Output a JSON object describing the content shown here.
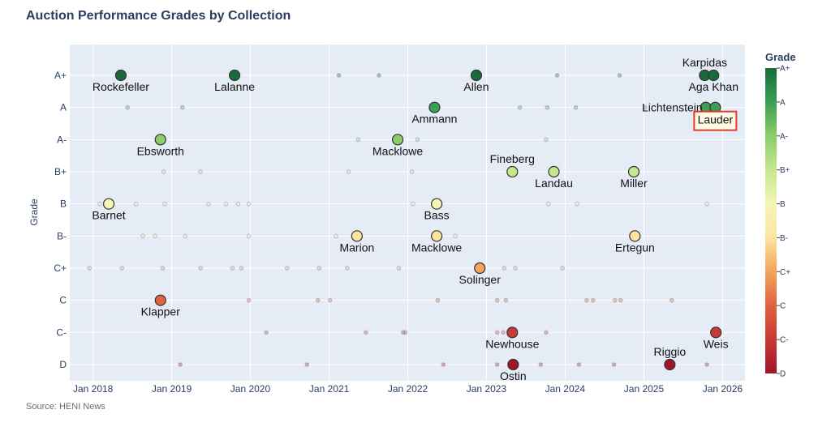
{
  "chart_data": {
    "type": "scatter",
    "title": "Auction Performance Grades by Collection",
    "source": "Source: HENI News",
    "ylabel": "Grade",
    "xlabel": "",
    "grid": true,
    "legend": "colorbar-right",
    "y_categories": [
      "D",
      "C-",
      "C",
      "C+",
      "B-",
      "B",
      "B+",
      "A-",
      "A",
      "A+"
    ],
    "x_ticks": [
      "2018-01-01",
      "2019-01-01",
      "2020-01-01",
      "2021-01-01",
      "2022-01-01",
      "2023-01-01",
      "2024-01-01",
      "2025-01-01",
      "2026-01-01"
    ],
    "x_tick_labels": [
      "Jan 2018",
      "Jan 2019",
      "Jan 2020",
      "Jan 2021",
      "Jan 2022",
      "Jan 2023",
      "Jan 2024",
      "Jan 2025",
      "Jan 2026"
    ],
    "xlim": [
      "2017-09-15",
      "2026-04-15"
    ],
    "colorbar": {
      "title": "Grade",
      "ticks": [
        "A+",
        "A",
        "A-",
        "B+",
        "B",
        "B-",
        "C+",
        "C",
        "C-",
        "D"
      ],
      "colors": [
        "#1a6b3a",
        "#39a055",
        "#8ccc6a",
        "#c5e78e",
        "#f5f5b8",
        "#fde4a0",
        "#f3a45a",
        "#e0613f",
        "#c83a35",
        "#a11527"
      ]
    },
    "highlight": "Lauder",
    "series": [
      {
        "type": "labeled",
        "points": [
          {
            "label": "Rockefeller",
            "date": "2018-05-10",
            "grade": "A+",
            "pos": "below"
          },
          {
            "label": "Lalanne",
            "date": "2019-10-20",
            "grade": "A+",
            "pos": "below"
          },
          {
            "label": "Allen",
            "date": "2022-11-15",
            "grade": "A+",
            "pos": "below"
          },
          {
            "label": "Karpidas",
            "date": "2025-10-10",
            "grade": "A+",
            "pos": "above"
          },
          {
            "label": "Aga Khan",
            "date": "2025-11-20",
            "grade": "A+",
            "pos": "below"
          },
          {
            "label": "Ammann",
            "date": "2022-05-05",
            "grade": "A",
            "pos": "below"
          },
          {
            "label": "Lichtenstein",
            "date": "2025-10-15",
            "grade": "A",
            "pos": "left"
          },
          {
            "label": "Lauder",
            "date": "2025-11-28",
            "grade": "A",
            "pos": "below-box"
          },
          {
            "label": "Ebsworth",
            "date": "2018-11-10",
            "grade": "A-",
            "pos": "below"
          },
          {
            "label": "Macklowe",
            "date": "2021-11-15",
            "grade": "A-",
            "pos": "below"
          },
          {
            "label": "Fineberg",
            "date": "2023-05-01",
            "grade": "B+",
            "pos": "above"
          },
          {
            "label": "Landau",
            "date": "2023-11-10",
            "grade": "B+",
            "pos": "below"
          },
          {
            "label": "Miller",
            "date": "2024-11-15",
            "grade": "B+",
            "pos": "below"
          },
          {
            "label": "Barnet",
            "date": "2018-03-15",
            "grade": "B",
            "pos": "below"
          },
          {
            "label": "Bass",
            "date": "2022-05-15",
            "grade": "B",
            "pos": "below"
          },
          {
            "label": "Marion",
            "date": "2021-05-10",
            "grade": "B-",
            "pos": "below"
          },
          {
            "label": "Macklowe",
            "date": "2022-05-15",
            "grade": "B-",
            "pos": "below"
          },
          {
            "label": "Ertegun",
            "date": "2024-11-20",
            "grade": "B-",
            "pos": "below"
          },
          {
            "label": "Solinger",
            "date": "2022-12-01",
            "grade": "C+",
            "pos": "below"
          },
          {
            "label": "Klapper",
            "date": "2018-11-10",
            "grade": "C",
            "pos": "below"
          },
          {
            "label": "Newhouse",
            "date": "2023-05-01",
            "grade": "C-",
            "pos": "below"
          },
          {
            "label": "Weis",
            "date": "2025-12-01",
            "grade": "C-",
            "pos": "below"
          },
          {
            "label": "Ostin",
            "date": "2023-05-05",
            "grade": "D",
            "pos": "below"
          },
          {
            "label": "Riggio",
            "date": "2025-05-01",
            "grade": "D",
            "pos": "above"
          }
        ]
      },
      {
        "type": "small",
        "points": [
          {
            "date": "2021-02-15",
            "grade": "A+"
          },
          {
            "date": "2021-08-20",
            "grade": "A+"
          },
          {
            "date": "2023-11-25",
            "grade": "A+"
          },
          {
            "date": "2024-09-10",
            "grade": "A+"
          },
          {
            "date": "2018-06-10",
            "grade": "A"
          },
          {
            "date": "2019-02-20",
            "grade": "A"
          },
          {
            "date": "2023-06-05",
            "grade": "A"
          },
          {
            "date": "2023-10-10",
            "grade": "A"
          },
          {
            "date": "2024-02-20",
            "grade": "A"
          },
          {
            "date": "2025-01-05",
            "grade": "A"
          },
          {
            "date": "2021-05-15",
            "grade": "A-"
          },
          {
            "date": "2022-02-15",
            "grade": "A-"
          },
          {
            "date": "2023-10-05",
            "grade": "A-"
          },
          {
            "date": "2018-11-25",
            "grade": "B+"
          },
          {
            "date": "2019-05-15",
            "grade": "B+"
          },
          {
            "date": "2021-04-01",
            "grade": "B+"
          },
          {
            "date": "2022-01-20",
            "grade": "B+"
          },
          {
            "date": "2023-05-10",
            "grade": "B+"
          },
          {
            "date": "2018-02-01",
            "grade": "B"
          },
          {
            "date": "2018-07-20",
            "grade": "B"
          },
          {
            "date": "2018-11-30",
            "grade": "B"
          },
          {
            "date": "2019-06-20",
            "grade": "B"
          },
          {
            "date": "2019-09-10",
            "grade": "B"
          },
          {
            "date": "2019-11-05",
            "grade": "B"
          },
          {
            "date": "2019-12-25",
            "grade": "B"
          },
          {
            "date": "2022-01-25",
            "grade": "B"
          },
          {
            "date": "2023-10-15",
            "grade": "B"
          },
          {
            "date": "2024-02-25",
            "grade": "B"
          },
          {
            "date": "2025-10-20",
            "grade": "B"
          },
          {
            "date": "2018-08-20",
            "grade": "B-"
          },
          {
            "date": "2018-10-15",
            "grade": "B-"
          },
          {
            "date": "2019-03-05",
            "grade": "B-"
          },
          {
            "date": "2019-12-25",
            "grade": "B-"
          },
          {
            "date": "2021-02-01",
            "grade": "B-"
          },
          {
            "date": "2022-08-10",
            "grade": "B-"
          },
          {
            "date": "2024-11-10",
            "grade": "B-"
          },
          {
            "date": "2017-12-15",
            "grade": "C+"
          },
          {
            "date": "2018-05-15",
            "grade": "C+"
          },
          {
            "date": "2018-11-20",
            "grade": "C+"
          },
          {
            "date": "2019-05-15",
            "grade": "C+"
          },
          {
            "date": "2019-10-10",
            "grade": "C+"
          },
          {
            "date": "2019-11-20",
            "grade": "C+"
          },
          {
            "date": "2020-06-20",
            "grade": "C+"
          },
          {
            "date": "2020-11-15",
            "grade": "C+"
          },
          {
            "date": "2021-03-25",
            "grade": "C+"
          },
          {
            "date": "2021-11-20",
            "grade": "C+"
          },
          {
            "date": "2023-03-25",
            "grade": "C+"
          },
          {
            "date": "2023-05-15",
            "grade": "C+"
          },
          {
            "date": "2023-12-20",
            "grade": "C+"
          },
          {
            "date": "2019-12-25",
            "grade": "C"
          },
          {
            "date": "2020-11-10",
            "grade": "C"
          },
          {
            "date": "2021-01-05",
            "grade": "C"
          },
          {
            "date": "2022-05-20",
            "grade": "C"
          },
          {
            "date": "2023-02-20",
            "grade": "C"
          },
          {
            "date": "2023-04-01",
            "grade": "C"
          },
          {
            "date": "2024-04-10",
            "grade": "C"
          },
          {
            "date": "2024-05-10",
            "grade": "C"
          },
          {
            "date": "2024-08-20",
            "grade": "C"
          },
          {
            "date": "2024-09-15",
            "grade": "C"
          },
          {
            "date": "2025-05-10",
            "grade": "C"
          },
          {
            "date": "2020-03-15",
            "grade": "C-"
          },
          {
            "date": "2021-06-20",
            "grade": "C-"
          },
          {
            "date": "2021-12-10",
            "grade": "C-"
          },
          {
            "date": "2021-12-20",
            "grade": "C-"
          },
          {
            "date": "2023-02-20",
            "grade": "C-"
          },
          {
            "date": "2023-03-20",
            "grade": "C-"
          },
          {
            "date": "2023-10-05",
            "grade": "C-"
          },
          {
            "date": "2019-02-10",
            "grade": "D"
          },
          {
            "date": "2020-09-20",
            "grade": "D"
          },
          {
            "date": "2022-06-15",
            "grade": "D"
          },
          {
            "date": "2023-02-20",
            "grade": "D"
          },
          {
            "date": "2023-09-10",
            "grade": "D"
          },
          {
            "date": "2024-03-05",
            "grade": "D"
          },
          {
            "date": "2024-08-15",
            "grade": "D"
          },
          {
            "date": "2025-10-20",
            "grade": "D"
          }
        ]
      }
    ]
  }
}
